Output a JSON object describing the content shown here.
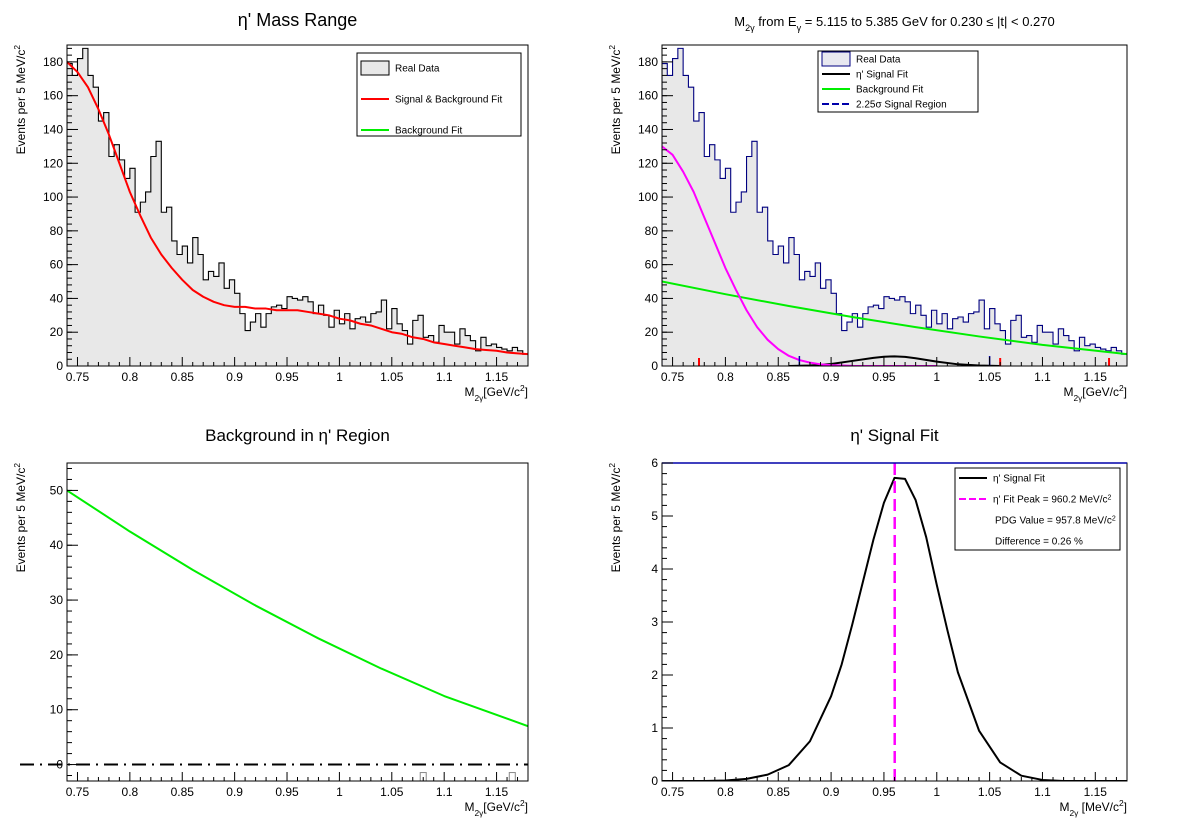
{
  "chart_data": [
    {
      "id": "p1",
      "type": "histogram",
      "title": "η' Mass Range",
      "xlabel": "M<sub>2γ</sub>[GeV/c<sup>2</sup>]",
      "ylabel": "Events per 5 MeV/c<sup>2</sup>",
      "xlim": [
        0.74,
        1.18
      ],
      "ylim": [
        0,
        190
      ],
      "xticks": [
        0.75,
        0.8,
        0.85,
        0.9,
        0.95,
        1,
        1.05,
        1.1,
        1.15
      ],
      "xtick_labels": [
        "0.75",
        "0.8",
        "0.85",
        "0.9",
        "0.95",
        "1",
        "1.05",
        "1.1",
        "1.15"
      ],
      "yticks": [
        0,
        20,
        40,
        60,
        80,
        100,
        120,
        140,
        160,
        180
      ],
      "ytick_labels": [
        "0",
        "20",
        "40",
        "60",
        "80",
        "100",
        "120",
        "140",
        "160",
        "180"
      ],
      "legend": [
        {
          "label": "Real Data",
          "kind": "box",
          "color": "#000000",
          "fill": "#e8e8e8"
        },
        {
          "label": "Signal & Background Fit",
          "kind": "line",
          "color": "#ff0000"
        },
        {
          "label": "Background Fit",
          "kind": "line",
          "color": "#00ee00"
        }
      ],
      "legend_position": "top-right",
      "histogram": {
        "bin_width": 0.005,
        "x_start": 0.74,
        "line_color": "#000000",
        "fill": "#e8e8e8",
        "counts": [
          179,
          172,
          182,
          188,
          172,
          165,
          145,
          150,
          124,
          131,
          122,
          111,
          117,
          91,
          97,
          103,
          124,
          133,
          91,
          94,
          74,
          66,
          71,
          61,
          76,
          66,
          51,
          56,
          53,
          61,
          46,
          51,
          43,
          31,
          21,
          26,
          31,
          23,
          31,
          35,
          36,
          34,
          41,
          40,
          39,
          41,
          38,
          31,
          36,
          30,
          23,
          33,
          25,
          31,
          22,
          28,
          29,
          26,
          31,
          32,
          39,
          22,
          34,
          25,
          21,
          13,
          27,
          30,
          17,
          18,
          14,
          24,
          20,
          20,
          13,
          22,
          18,
          15,
          9,
          17,
          12,
          13,
          11,
          10,
          9,
          11,
          9,
          7,
          8,
          4,
          11
        ]
      },
      "curves": [
        {
          "name": "Signal & Background Fit",
          "color": "#ff0000",
          "x": [
            0.74,
            0.75,
            0.76,
            0.77,
            0.78,
            0.79,
            0.8,
            0.81,
            0.82,
            0.83,
            0.84,
            0.85,
            0.86,
            0.87,
            0.88,
            0.89,
            0.9,
            0.91,
            0.92,
            0.93,
            0.94,
            0.95,
            0.96,
            0.97,
            0.98,
            0.99,
            1.0,
            1.01,
            1.02,
            1.03,
            1.04,
            1.05,
            1.06,
            1.07,
            1.08,
            1.09,
            1.1,
            1.11,
            1.12,
            1.13,
            1.14,
            1.15,
            1.16,
            1.17,
            1.18
          ],
          "y": [
            180,
            174,
            165,
            152,
            137,
            120,
            103,
            89,
            76,
            66,
            58,
            51,
            45,
            41,
            38,
            36,
            35,
            35,
            34,
            34,
            33,
            33,
            33,
            32,
            31,
            30,
            28,
            27,
            25,
            24,
            22,
            20,
            19,
            17,
            16,
            14,
            13,
            12,
            11,
            10,
            9.5,
            9,
            8,
            7.5,
            7
          ]
        }
      ]
    },
    {
      "id": "p2",
      "type": "histogram",
      "title": "M<sub>2γ</sub> from E<sub>γ</sub> = 5.115 to 5.385 GeV for 0.230 ≤ |t| < 0.270",
      "xlabel": "M<sub>2γ</sub>[GeV/c<sup>2</sup>]",
      "ylabel": "Events per 5 MeV/c<sup>2</sup>",
      "xlim": [
        0.74,
        1.18
      ],
      "ylim": [
        0,
        190
      ],
      "xticks": [
        0.75,
        0.8,
        0.85,
        0.9,
        0.95,
        1,
        1.05,
        1.1,
        1.15
      ],
      "xtick_labels": [
        "0.75",
        "0.8",
        "0.85",
        "0.9",
        "0.95",
        "1",
        "1.05",
        "1.1",
        "1.15"
      ],
      "yticks": [
        0,
        20,
        40,
        60,
        80,
        100,
        120,
        140,
        160,
        180
      ],
      "ytick_labels": [
        "0",
        "20",
        "40",
        "60",
        "80",
        "100",
        "120",
        "140",
        "160",
        "180"
      ],
      "legend": [
        {
          "label": "Real Data",
          "kind": "box",
          "color": "#000080",
          "fill": "#e8e8f0"
        },
        {
          "label": "η' Signal Fit",
          "kind": "line",
          "color": "#000000"
        },
        {
          "label": "Background Fit",
          "kind": "line",
          "color": "#00ee00"
        },
        {
          "label": "2.25σ Signal Region",
          "kind": "dash",
          "color": "#0000aa"
        }
      ],
      "legend_position": "top-center",
      "histogram": {
        "bin_width": 0.005,
        "x_start": 0.74,
        "line_color": "#000080",
        "fill": "#e8e8e8",
        "counts": [
          179,
          172,
          182,
          188,
          172,
          165,
          145,
          150,
          124,
          131,
          122,
          111,
          117,
          91,
          97,
          103,
          124,
          133,
          91,
          94,
          74,
          66,
          71,
          61,
          76,
          66,
          51,
          56,
          53,
          61,
          46,
          51,
          43,
          31,
          21,
          26,
          31,
          23,
          31,
          35,
          36,
          34,
          41,
          40,
          39,
          41,
          38,
          31,
          36,
          30,
          23,
          33,
          25,
          31,
          22,
          28,
          29,
          26,
          31,
          32,
          39,
          22,
          34,
          25,
          21,
          13,
          27,
          30,
          17,
          18,
          14,
          24,
          20,
          20,
          13,
          22,
          18,
          15,
          9,
          17,
          12,
          13,
          11,
          10,
          9,
          11,
          9,
          7,
          8,
          4,
          11
        ]
      },
      "curves": [
        {
          "name": "η' Signal Fit",
          "color": "#000000",
          "x": [
            0.86,
            0.88,
            0.9,
            0.92,
            0.94,
            0.95,
            0.96,
            0.97,
            0.98,
            1.0,
            1.02,
            1.04,
            1.06
          ],
          "y": [
            0,
            0.3,
            1.2,
            3,
            4.8,
            5.5,
            5.7,
            5.4,
            4.6,
            2.6,
            1,
            0.3,
            0
          ]
        },
        {
          "name": "Background Fit",
          "color": "#00ee00",
          "x": [
            0.74,
            0.8,
            0.86,
            0.92,
            0.98,
            1.04,
            1.1,
            1.18
          ],
          "y": [
            50,
            42.5,
            35.5,
            29,
            23,
            17.5,
            12.5,
            7
          ]
        },
        {
          "name": "",
          "color": "#ff00ff",
          "x": [
            0.74,
            0.75,
            0.76,
            0.77,
            0.78,
            0.79,
            0.8,
            0.81,
            0.82,
            0.83,
            0.84,
            0.85,
            0.86,
            0.87,
            0.88,
            0.89,
            0.9,
            0.92,
            0.94,
            0.96,
            1.0
          ],
          "y": [
            130,
            125,
            115,
            103,
            88,
            73,
            58,
            45,
            33,
            23,
            15.5,
            10,
            6,
            3.5,
            2,
            1,
            0.5,
            0.1,
            0,
            0,
            0
          ]
        }
      ],
      "signal_region": {
        "color": "#0000aa",
        "x": [
          0.87,
          1.05
        ]
      },
      "ticks_marks": {
        "color": "#ff0000",
        "x": [
          0.775,
          1.06,
          1.163
        ]
      }
    },
    {
      "id": "p3",
      "type": "line",
      "title": "Background in η' Region",
      "xlabel": "M<sub>2γ</sub>[GeV/c<sup>2</sup>]",
      "ylabel": "Events per 5 MeV/c<sup>2</sup>",
      "xlim": [
        0.74,
        1.18
      ],
      "ylim": [
        -3,
        55
      ],
      "xticks": [
        0.75,
        0.8,
        0.85,
        0.9,
        0.95,
        1,
        1.05,
        1.1,
        1.15
      ],
      "xtick_labels": [
        "0.75",
        "0.8",
        "0.85",
        "0.9",
        "0.95",
        "1",
        "1.05",
        "1.1",
        "1.15"
      ],
      "yticks": [
        0,
        10,
        20,
        30,
        40,
        50
      ],
      "ytick_labels": [
        "0",
        "10",
        "20",
        "30",
        "40",
        "50"
      ],
      "curves": [
        {
          "name": "",
          "color": "#00ee00",
          "x": [
            0.74,
            0.8,
            0.86,
            0.92,
            0.98,
            1.04,
            1.1,
            1.18
          ],
          "y": [
            50,
            42.5,
            35.5,
            29,
            23,
            17.5,
            12.5,
            7
          ]
        }
      ],
      "zero_line": {
        "y": 0,
        "color": "#000000",
        "style": "dashdot"
      },
      "small_bars": [
        {
          "x": 1.08,
          "y": -2
        },
        {
          "x": 1.165,
          "y": -2
        }
      ]
    },
    {
      "id": "p4",
      "type": "line",
      "title": "η' Signal Fit",
      "xlabel": "M<sub>2γ</sub> [MeV/c<sup>2</sup>]",
      "ylabel": "Events per 5 MeV/c<sup>2</sup>",
      "xlim": [
        0.74,
        1.18
      ],
      "ylim": [
        0,
        6
      ],
      "xticks": [
        0.75,
        0.8,
        0.85,
        0.9,
        0.95,
        1,
        1.05,
        1.1,
        1.15
      ],
      "xtick_labels": [
        "0.75",
        "0.8",
        "0.85",
        "0.9",
        "0.95",
        "1",
        "1.05",
        "1.1",
        "1.15"
      ],
      "yticks": [
        0,
        1,
        2,
        3,
        4,
        5,
        6
      ],
      "ytick_labels": [
        "0",
        "1",
        "2",
        "3",
        "4",
        "5",
        "6"
      ],
      "legend": [
        {
          "label": "η' Signal Fit",
          "kind": "line",
          "color": "#000000"
        },
        {
          "label": "η' Fit Peak = 960.2 MeV/c<sup>2</sup>",
          "kind": "dash",
          "color": "#ff00ff"
        },
        {
          "label": "PDG Value = 957.8 MeV/c<sup>2</sup>",
          "kind": "none",
          "color": "#000000"
        },
        {
          "label": "Difference = 0.26 %",
          "kind": "none",
          "color": "#000000"
        }
      ],
      "legend_position": "top-right",
      "curves": [
        {
          "name": "η' Signal Fit",
          "color": "#000000",
          "x": [
            0.74,
            0.78,
            0.8,
            0.82,
            0.84,
            0.86,
            0.88,
            0.9,
            0.91,
            0.92,
            0.93,
            0.94,
            0.95,
            0.96,
            0.97,
            0.98,
            0.99,
            1.0,
            1.01,
            1.02,
            1.04,
            1.06,
            1.08,
            1.1,
            1.12,
            1.18
          ],
          "y": [
            0,
            0,
            0.01,
            0.04,
            0.12,
            0.3,
            0.75,
            1.6,
            2.2,
            2.95,
            3.75,
            4.55,
            5.25,
            5.72,
            5.7,
            5.3,
            4.6,
            3.7,
            2.85,
            2.05,
            0.95,
            0.35,
            0.1,
            0.02,
            0,
            0
          ]
        }
      ],
      "peak_line": {
        "x": 0.9602,
        "color": "#ff00ff"
      },
      "top_line_color": "#0000aa"
    }
  ]
}
